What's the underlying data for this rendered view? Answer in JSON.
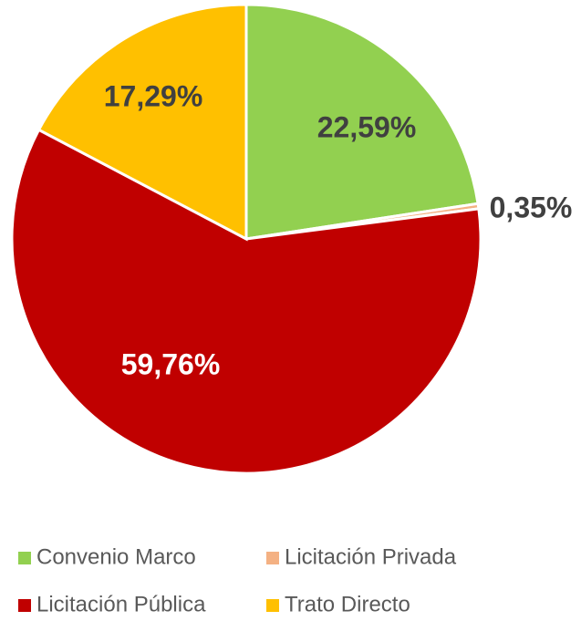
{
  "chart_data": {
    "type": "pie",
    "categories": [
      "Convenio Marco",
      "Licitación Privada",
      "Licitación Pública",
      "Trato Directo"
    ],
    "values": [
      22.59,
      0.35,
      59.76,
      17.29
    ],
    "value_labels": [
      "22,59%",
      "0,35%",
      "59,76%",
      "17,29%"
    ],
    "colors": [
      "#92d050",
      "#f4b183",
      "#c00000",
      "#ffc000"
    ],
    "legend": "bottom"
  }
}
